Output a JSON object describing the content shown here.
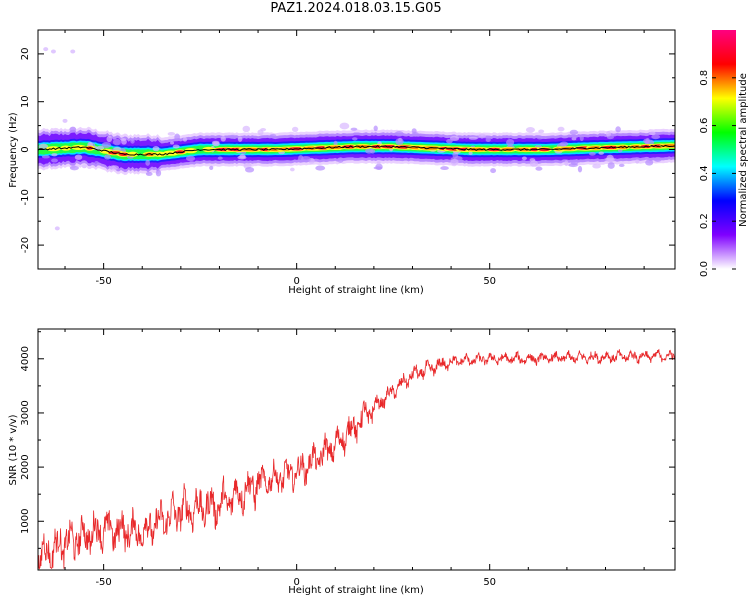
{
  "title": "PAZ1.2024.018.03.15.G05",
  "chart_data": [
    {
      "type": "heatmap",
      "xlabel": "Height of straight line (km)",
      "ylabel": "Frequency (Hz)",
      "xlim": [
        -67,
        98
      ],
      "ylim": [
        -25,
        25
      ],
      "x_ticks": [
        -50,
        0,
        50
      ],
      "y_ticks": [
        -20,
        -10,
        0,
        10,
        20
      ],
      "colorbar": {
        "label": "Normalized spectral amplitude",
        "range": [
          0,
          1
        ],
        "ticks": [
          "0.0",
          "0.2",
          "0.4",
          "0.6",
          "0.8"
        ],
        "colors": [
          "#ffffff",
          "#7f00ff",
          "#0000ff",
          "#00ffff",
          "#00ff00",
          "#ffff00",
          "#ff0000",
          "#ff0080"
        ]
      },
      "center_line": {
        "x": [
          -67,
          -55,
          -45,
          -35,
          -25,
          -15,
          -5,
          5,
          15,
          25,
          35,
          45,
          55,
          65,
          75,
          85,
          98
        ],
        "y": [
          0.0,
          0.5,
          -1.0,
          -1.0,
          0.0,
          0.0,
          0.0,
          0.3,
          0.6,
          0.6,
          0.3,
          0.0,
          0.0,
          0.0,
          0.3,
          0.5,
          0.8
        ]
      }
    },
    {
      "type": "line",
      "xlabel": "Height of straight line (km)",
      "ylabel": "SNR (10 * v/v)",
      "xlim": [
        -67,
        98
      ],
      "ylim": [
        100,
        4550
      ],
      "x_ticks": [
        -50,
        0,
        50
      ],
      "y_ticks": [
        1000,
        2000,
        3000,
        4000
      ],
      "line_color": "#e8282a",
      "trend": {
        "x": [
          -67,
          -60,
          -50,
          -40,
          -30,
          -20,
          -10,
          0,
          10,
          20,
          25,
          30,
          40,
          50,
          60,
          70,
          80,
          90,
          98
        ],
        "y": [
          350,
          600,
          850,
          800,
          1200,
          1300,
          1700,
          1900,
          2400,
          3100,
          3400,
          3700,
          3950,
          4000,
          4000,
          4020,
          4030,
          4050,
          4050
        ]
      }
    }
  ]
}
